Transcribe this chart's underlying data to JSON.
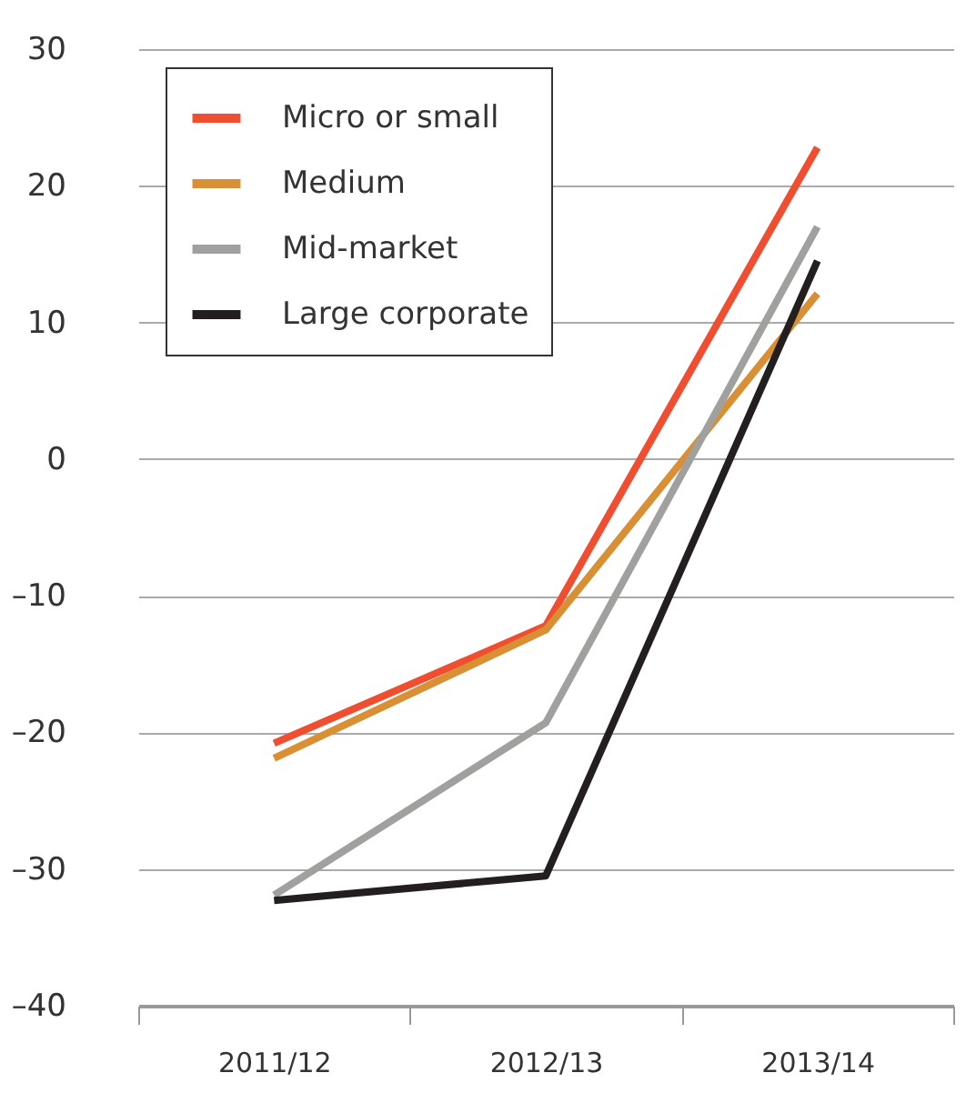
{
  "chart_data": {
    "type": "line",
    "categories": [
      "2011/12",
      "2012/13",
      "2013/14"
    ],
    "series": [
      {
        "name": "Micro or small",
        "color": "#f04e30",
        "values": [
          -20.8,
          -12.2,
          22.8
        ]
      },
      {
        "name": "Medium",
        "color": "#d98f34",
        "values": [
          -21.9,
          -12.5,
          12.1
        ]
      },
      {
        "name": "Mid-market",
        "color": "#a0a09e",
        "values": [
          -31.9,
          -19.3,
          17.0
        ]
      },
      {
        "name": "Large corporate",
        "color": "#231f20",
        "values": [
          -32.3,
          -30.5,
          14.5
        ]
      }
    ],
    "ylim": [
      -40,
      30
    ],
    "yticks": [
      {
        "value": -40,
        "label": "–40"
      },
      {
        "value": -30,
        "label": "–30"
      },
      {
        "value": -20,
        "label": "–20"
      },
      {
        "value": -10,
        "label": "–10"
      },
      0,
      10,
      20,
      30
    ],
    "grid": "y",
    "legend": "top left",
    "marker": "none",
    "line_style": "solid"
  }
}
